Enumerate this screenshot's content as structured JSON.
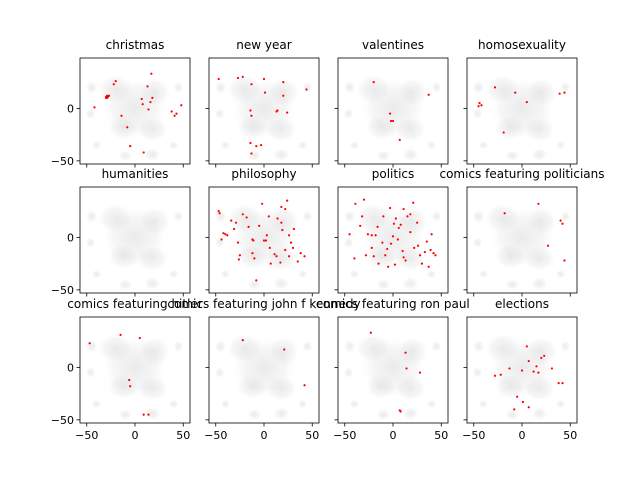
{
  "figure": {
    "background": "#ffffff",
    "axis_color": "#000000",
    "highlight_color": "#ff0000",
    "background_cloud_color": "#d9d9d9"
  },
  "chart_data": {
    "type": "scatter",
    "layout": {
      "rows": 3,
      "cols": 4
    },
    "shared_axes": true,
    "xlim": [
      -57,
      57
    ],
    "ylim": [
      -53,
      48
    ],
    "xticks": [
      -50,
      0,
      50
    ],
    "yticks": [
      -50,
      0
    ],
    "xtick_labels": [
      "−50",
      "0",
      "50"
    ],
    "ytick_labels": [
      "−50",
      "0"
    ],
    "grid": false,
    "legend": "none",
    "panels": [
      {
        "title": "christmas",
        "points": [
          [
            -30,
            11
          ],
          [
            -29,
            12
          ],
          [
            -28,
            11
          ],
          [
            -30,
            10
          ],
          [
            -29,
            10
          ],
          [
            -27,
            12
          ],
          [
            -22,
            23
          ],
          [
            -20,
            26
          ],
          [
            -42,
            1
          ],
          [
            -14,
            -7
          ],
          [
            -8,
            -18
          ],
          [
            -5,
            -36
          ],
          [
            9,
            -42
          ],
          [
            17,
            33
          ],
          [
            13,
            21
          ],
          [
            7,
            9
          ],
          [
            8,
            4
          ],
          [
            16,
            6
          ],
          [
            18,
            10
          ],
          [
            14,
            -1
          ],
          [
            38,
            -3
          ],
          [
            41,
            -7
          ],
          [
            43,
            -5
          ],
          [
            48,
            3
          ]
        ]
      },
      {
        "title": "new year",
        "points": [
          [
            -47,
            28
          ],
          [
            -27,
            29
          ],
          [
            -22,
            30
          ],
          [
            -13,
            23
          ],
          [
            -14,
            -2
          ],
          [
            -13,
            -7
          ],
          [
            -14,
            -33
          ],
          [
            -13,
            -43
          ],
          [
            -8,
            -36
          ],
          [
            -3,
            -35
          ],
          [
            0,
            28
          ],
          [
            1,
            15
          ],
          [
            14,
            -2
          ],
          [
            13,
            -3
          ],
          [
            20,
            12
          ],
          [
            20,
            25
          ],
          [
            24,
            -4
          ],
          [
            44,
            18
          ]
        ]
      },
      {
        "title": "valentines",
        "points": [
          [
            -20,
            25
          ],
          [
            -3,
            -5
          ],
          [
            -2,
            -12
          ],
          [
            0,
            -12
          ],
          [
            7,
            -30
          ],
          [
            37,
            13
          ]
        ]
      },
      {
        "title": "homosexuality",
        "points": [
          [
            -44,
            5
          ],
          [
            -45,
            2
          ],
          [
            -42,
            3
          ],
          [
            -28,
            20
          ],
          [
            -19,
            -23
          ],
          [
            -7,
            15
          ],
          [
            5,
            6
          ],
          [
            39,
            14
          ],
          [
            44,
            15
          ]
        ]
      },
      {
        "title": "humanities",
        "points": []
      },
      {
        "title": "philosophy",
        "points": [
          [
            -47,
            25
          ],
          [
            -46,
            23
          ],
          [
            -38,
            2
          ],
          [
            -42,
            4
          ],
          [
            -40,
            3
          ],
          [
            -31,
            8
          ],
          [
            -29,
            14
          ],
          [
            -27,
            -5
          ],
          [
            -25,
            -17
          ],
          [
            -22,
            22
          ],
          [
            -18,
            19
          ],
          [
            -16,
            10
          ],
          [
            -12,
            -2
          ],
          [
            -11,
            -3
          ],
          [
            -10,
            -20
          ],
          [
            -8,
            -41
          ],
          [
            -5,
            11
          ],
          [
            -2,
            32
          ],
          [
            0,
            -3
          ],
          [
            2,
            -3
          ],
          [
            3,
            2
          ],
          [
            5,
            20
          ],
          [
            6,
            -10
          ],
          [
            11,
            -16
          ],
          [
            13,
            -18
          ],
          [
            14,
            18
          ],
          [
            17,
            -24
          ],
          [
            18,
            29
          ],
          [
            18,
            14
          ],
          [
            22,
            27
          ],
          [
            24,
            35
          ],
          [
            26,
            2
          ],
          [
            26,
            -18
          ],
          [
            30,
            -10
          ],
          [
            31,
            8
          ],
          [
            35,
            -23
          ],
          [
            38,
            -15
          ],
          [
            42,
            -18
          ],
          [
            -44,
            -2
          ],
          [
            -34,
            16
          ],
          [
            -12,
            -15
          ],
          [
            7,
            -25
          ],
          [
            22,
            -12
          ],
          [
            28,
            -5
          ],
          [
            -26,
            -21
          ],
          [
            19,
            7
          ]
        ]
      },
      {
        "title": "politics",
        "points": [
          [
            -45,
            3
          ],
          [
            -39,
            32
          ],
          [
            -34,
            11
          ],
          [
            -30,
            36
          ],
          [
            -26,
            3
          ],
          [
            -22,
            2
          ],
          [
            -18,
            2
          ],
          [
            -16,
            10
          ],
          [
            -11,
            -5
          ],
          [
            -8,
            -17
          ],
          [
            -6,
            -11
          ],
          [
            -5,
            -28
          ],
          [
            -2,
            -6
          ],
          [
            0,
            1
          ],
          [
            1,
            13
          ],
          [
            2,
            -26
          ],
          [
            5,
            -2
          ],
          [
            6,
            9
          ],
          [
            8,
            12
          ],
          [
            10,
            -13
          ],
          [
            11,
            -19
          ],
          [
            13,
            -22
          ],
          [
            15,
            20
          ],
          [
            18,
            22
          ],
          [
            21,
            33
          ],
          [
            22,
            -10
          ],
          [
            25,
            14
          ],
          [
            26,
            -8
          ],
          [
            28,
            -17
          ],
          [
            30,
            -25
          ],
          [
            33,
            -14
          ],
          [
            35,
            -4
          ],
          [
            37,
            -28
          ],
          [
            39,
            -12
          ],
          [
            42,
            -15
          ],
          [
            44,
            -17
          ],
          [
            -28,
            -17
          ],
          [
            -20,
            -18
          ],
          [
            -40,
            -20
          ],
          [
            18,
            5
          ],
          [
            -15,
            -25
          ],
          [
            -22,
            -10
          ],
          [
            -32,
            20
          ],
          [
            40,
            3
          ],
          [
            -3,
            28
          ],
          [
            11,
            27
          ],
          [
            3,
            18
          ],
          [
            -10,
            20
          ]
        ]
      },
      {
        "title": "comics featuring politicians",
        "points": [
          [
            -18,
            23
          ],
          [
            17,
            32
          ],
          [
            27,
            -8
          ],
          [
            40,
            16
          ],
          [
            42,
            13
          ],
          [
            44,
            -22
          ]
        ]
      },
      {
        "title": "comics featuring hitler",
        "points": [
          [
            -47,
            23
          ],
          [
            -15,
            31
          ],
          [
            -6,
            -12
          ],
          [
            5,
            28
          ],
          [
            9,
            -45
          ],
          [
            14,
            -45
          ],
          [
            -5,
            -18
          ]
        ]
      },
      {
        "title": "comics featuring john f kennedy",
        "points": [
          [
            -22,
            26
          ],
          [
            21,
            17
          ],
          [
            42,
            -17
          ]
        ]
      },
      {
        "title": "comics featuring ron paul",
        "points": [
          [
            -23,
            33
          ],
          [
            13,
            14
          ],
          [
            14,
            -1
          ],
          [
            28,
            -5
          ],
          [
            7,
            -41
          ],
          [
            8,
            -42
          ]
        ]
      },
      {
        "title": "elections",
        "points": [
          [
            -28,
            -8
          ],
          [
            -22,
            -7
          ],
          [
            -13,
            -1
          ],
          [
            -8,
            -40
          ],
          [
            -5,
            -28
          ],
          [
            0,
            -3
          ],
          [
            1,
            -33
          ],
          [
            5,
            20
          ],
          [
            7,
            -38
          ],
          [
            12,
            -4
          ],
          [
            15,
            1
          ],
          [
            17,
            -5
          ],
          [
            20,
            9
          ],
          [
            23,
            11
          ],
          [
            31,
            -1
          ],
          [
            38,
            -15
          ],
          [
            42,
            -15
          ],
          [
            7,
            6
          ]
        ]
      }
    ]
  }
}
